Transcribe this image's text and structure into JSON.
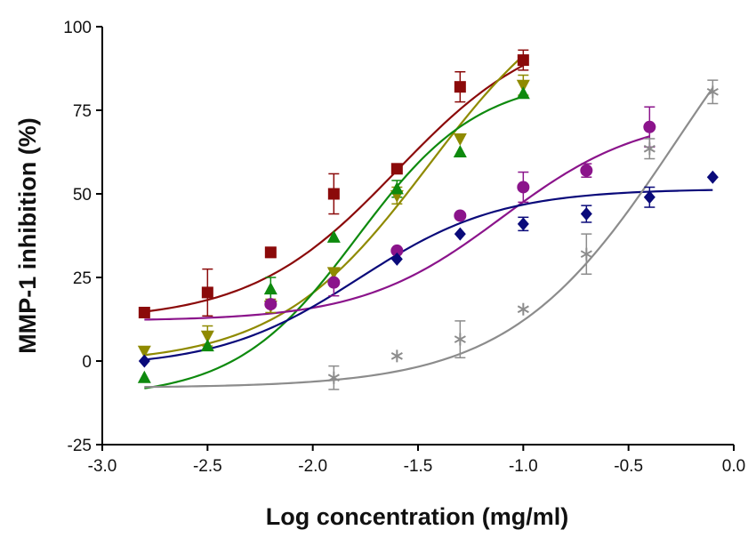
{
  "chart_data": {
    "type": "scatter",
    "xlabel": "Log concentration (mg/ml)",
    "ylabel": "MMP-1 inhibition (%)",
    "xlim": [
      -3.0,
      0.0
    ],
    "ylim": [
      -25,
      100
    ],
    "x_ticks": [
      "-3.0",
      "-2.5",
      "-2.0",
      "-1.5",
      "-1.0",
      "-0.5",
      "0.0"
    ],
    "y_ticks": [
      "-25",
      "0",
      "25",
      "50",
      "75",
      "100"
    ],
    "grid": false,
    "legend": "none",
    "series": [
      {
        "marker": "square",
        "color": "#8b0a0a",
        "points": [
          {
            "x": -2.8,
            "y": 14.5,
            "err": 0
          },
          {
            "x": -2.5,
            "y": 20.5,
            "err": 7
          },
          {
            "x": -2.2,
            "y": 32.5,
            "err": 1.5
          },
          {
            "x": -1.9,
            "y": 50,
            "err": 6
          },
          {
            "x": -1.6,
            "y": 57.5,
            "err": 0
          },
          {
            "x": -1.3,
            "y": 82,
            "err": 4.5
          },
          {
            "x": -1.0,
            "y": 90,
            "err": 3
          }
        ],
        "curve": {
          "bottom": 12,
          "top": 102,
          "logec50": -1.6,
          "hill": 1.25,
          "xmin": -2.8,
          "xmax": -1.0
        }
      },
      {
        "marker": "triangle-down",
        "color": "#8f8a00",
        "points": [
          {
            "x": -2.8,
            "y": 3,
            "err": 0
          },
          {
            "x": -2.5,
            "y": 7.5,
            "err": 3
          },
          {
            "x": -2.2,
            "y": 16.5,
            "err": 2
          },
          {
            "x": -1.9,
            "y": 26.5,
            "err": 0
          },
          {
            "x": -1.6,
            "y": 49.5,
            "err": 2.5
          },
          {
            "x": -1.3,
            "y": 66.5,
            "err": 0
          },
          {
            "x": -1.0,
            "y": 82.5,
            "err": 3
          }
        ],
        "curve": {
          "bottom": -1,
          "top": 118,
          "logec50": -1.45,
          "hill": 1.2,
          "xmin": -2.8,
          "xmax": -1.0
        }
      },
      {
        "marker": "triangle-up",
        "color": "#0e8a0e",
        "points": [
          {
            "x": -2.8,
            "y": -5,
            "err": 0
          },
          {
            "x": -2.5,
            "y": 4.5,
            "err": 0
          },
          {
            "x": -2.2,
            "y": 21.5,
            "err": 3.5
          },
          {
            "x": -1.9,
            "y": 37,
            "err": 0
          },
          {
            "x": -1.6,
            "y": 51.5,
            "err": 2.5
          },
          {
            "x": -1.3,
            "y": 62.5,
            "err": 0
          },
          {
            "x": -1.0,
            "y": 80,
            "err": 0
          }
        ],
        "curve": {
          "bottom": -11,
          "top": 85,
          "logec50": -1.79,
          "hill": 1.5,
          "xmin": -2.8,
          "xmax": -1.0
        }
      },
      {
        "marker": "circle",
        "color": "#8b148b",
        "points": [
          {
            "x": -2.2,
            "y": 17,
            "err": 0
          },
          {
            "x": -1.9,
            "y": 23.5,
            "err": 4
          },
          {
            "x": -1.6,
            "y": 33,
            "err": 0
          },
          {
            "x": -1.3,
            "y": 43.5,
            "err": 0
          },
          {
            "x": -1.0,
            "y": 52,
            "err": 4.5
          },
          {
            "x": -0.7,
            "y": 57,
            "err": 2
          },
          {
            "x": -0.4,
            "y": 70,
            "err": 6
          }
        ],
        "curve": {
          "bottom": 12,
          "top": 74,
          "logec50": -1.1,
          "hill": 1.3,
          "xmin": -2.8,
          "xmax": -0.4
        }
      },
      {
        "marker": "diamond",
        "color": "#0a0a7a",
        "points": [
          {
            "x": -2.8,
            "y": 0,
            "err": 0
          },
          {
            "x": -1.6,
            "y": 30.5,
            "err": 0
          },
          {
            "x": -1.3,
            "y": 38,
            "err": 0
          },
          {
            "x": -1.0,
            "y": 41,
            "err": 2
          },
          {
            "x": -0.7,
            "y": 44,
            "err": 2.5
          },
          {
            "x": -0.4,
            "y": 49,
            "err": 3
          },
          {
            "x": -0.1,
            "y": 55,
            "err": 0
          }
        ],
        "curve": {
          "bottom": -2,
          "top": 51.5,
          "logec50": -1.78,
          "hill": 1.3,
          "xmin": -2.8,
          "xmax": -0.1
        }
      },
      {
        "marker": "asterisk",
        "color": "#8c8c8c",
        "points": [
          {
            "x": -1.9,
            "y": -5,
            "err": 3.5
          },
          {
            "x": -1.6,
            "y": 1.5,
            "err": 0
          },
          {
            "x": -1.3,
            "y": 6.5,
            "err": 5.5
          },
          {
            "x": -1.0,
            "y": 15.5,
            "err": 0
          },
          {
            "x": -0.7,
            "y": 32,
            "err": 6
          },
          {
            "x": -0.4,
            "y": 63.5,
            "err": 3
          },
          {
            "x": -0.1,
            "y": 80.5,
            "err": 3.5
          }
        ],
        "curve": {
          "bottom": -8,
          "top": 140,
          "logec50": -0.27,
          "hill": 1.1,
          "xmin": -2.8,
          "xmax": -0.1
        }
      }
    ]
  }
}
